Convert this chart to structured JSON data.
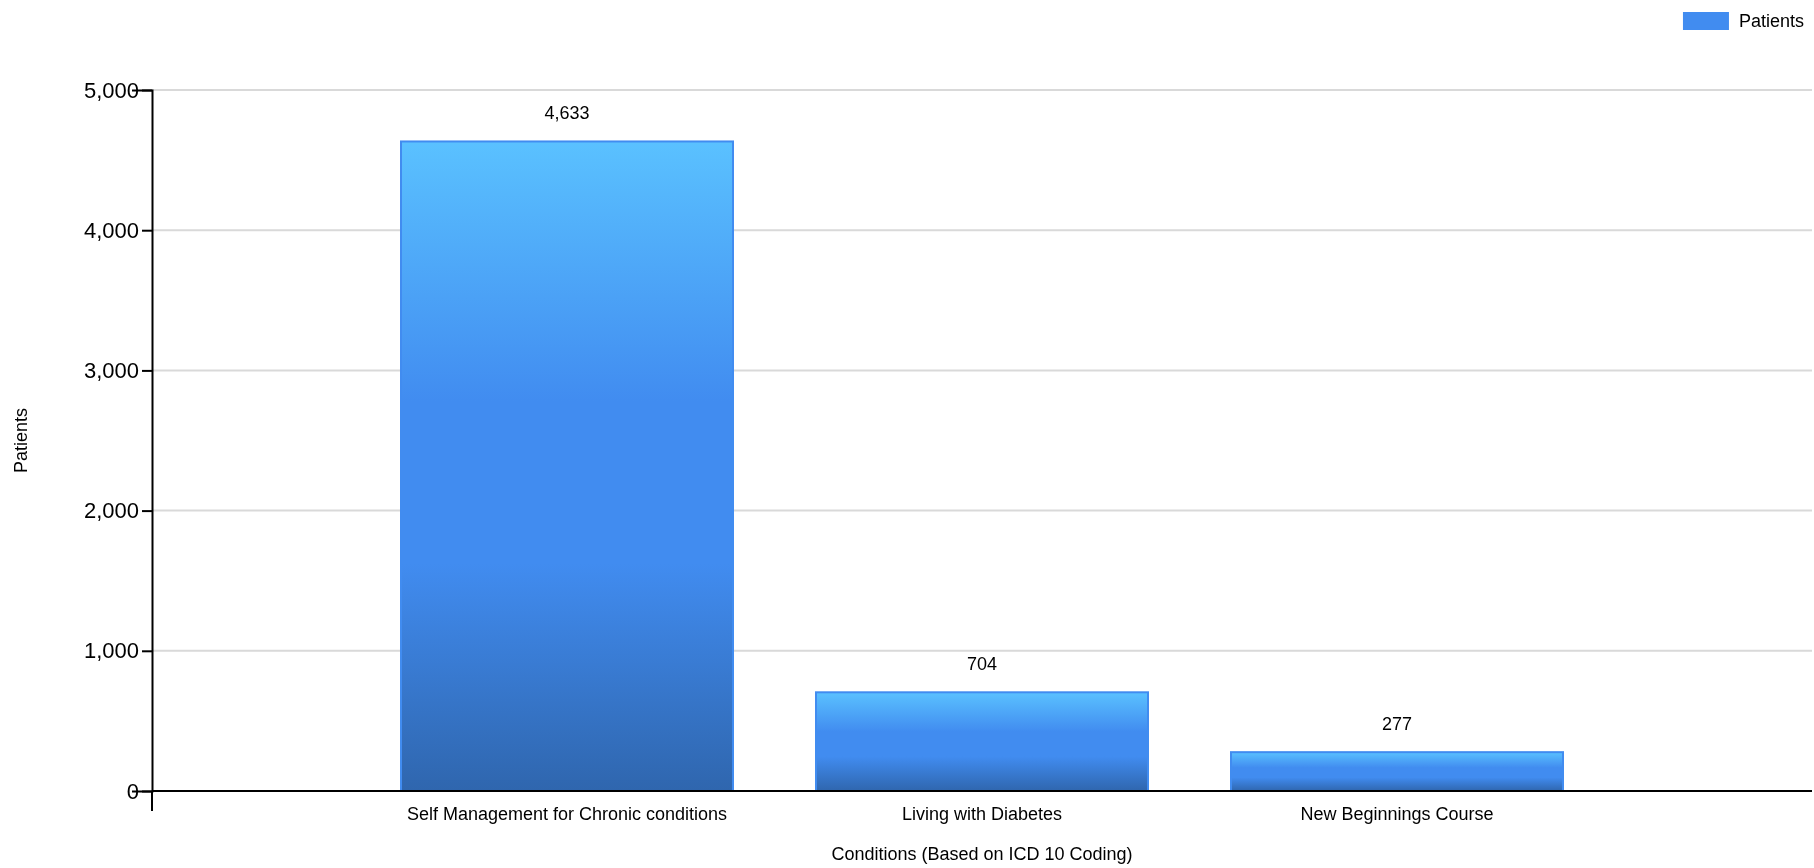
{
  "chart_data": {
    "type": "bar",
    "xlabel": "Conditions (Based on ICD 10 Coding)",
    "ylabel": "Patients",
    "categories": [
      "Self Management for Chronic conditions",
      "Living with Diabetes",
      "New Beginnings Course"
    ],
    "series": [
      {
        "name": "Patients",
        "color": "#418cf0",
        "values": [
          4633,
          704,
          277
        ]
      }
    ],
    "ylim": [
      0,
      5000
    ],
    "yticks": [
      {
        "value": 0,
        "label": "0"
      },
      {
        "value": 1000,
        "label": "1,000"
      },
      {
        "value": 2000,
        "label": "2,000"
      },
      {
        "value": 3000,
        "label": "3,000"
      },
      {
        "value": 4000,
        "label": "4,000"
      },
      {
        "value": 5000,
        "label": "5,000"
      }
    ],
    "value_labels": [
      "4,633",
      "704",
      "277"
    ],
    "grid": "y",
    "legend": "top right"
  }
}
